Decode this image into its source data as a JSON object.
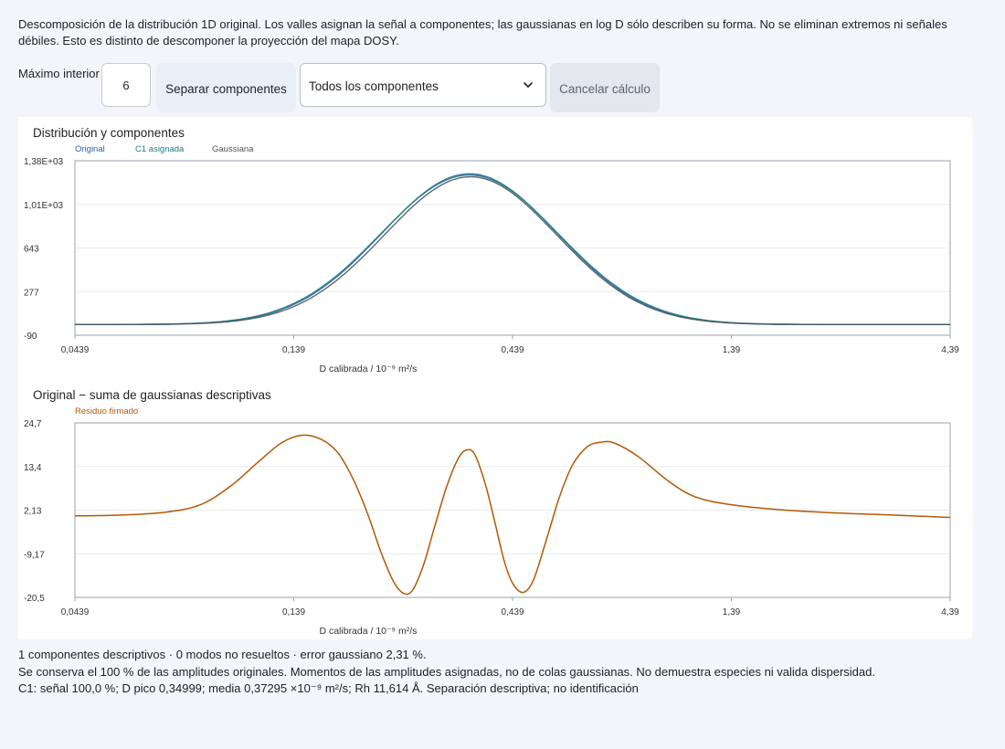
{
  "intro": {
    "line1": "Descomposición de la distribución 1D original. Los valles asignan la señal a componentes; las gaussianas en log D sólo describen su forma. No se eliminan extremos ni señales",
    "line2": "débiles. Esto es distinto de descomponer la proyección del mapa DOSY."
  },
  "controls": {
    "max_label": "Máximo interior",
    "max_value": "6",
    "split_label": "Separar componentes",
    "select_value": "Todos los componentes",
    "cancel_label": "Cancelar cálculo"
  },
  "icons": {
    "select_chevron": "chevron-down-icon"
  },
  "colors": {
    "original": "#2f5fa7",
    "assigned": "#1d8080",
    "gaussian": "#4a5560",
    "residual": "#b35806"
  },
  "chart_data": [
    {
      "type": "line",
      "title": "Distribución y componentes",
      "xlabel": "D calibrada / 10⁻⁹ m²/s",
      "x_scale": "log",
      "xlim": [
        0.0439,
        4.39
      ],
      "ylim": [
        -90,
        1380
      ],
      "x_ticks": [
        "0,0439",
        "0,139",
        "0,439",
        "1,39",
        "4,39"
      ],
      "y_ticks": [
        "1,38E+03",
        "1,01E+03",
        "643",
        "277",
        "-90"
      ],
      "legend": [
        "Original",
        "C1 asignada",
        "Gaussiana"
      ],
      "legend_position": "top-left",
      "grid": true,
      "series": [
        {
          "name": "Original",
          "peak_x": 0.35,
          "peak_y": 1270,
          "log10_sigma": 0.2,
          "baseline": 0
        },
        {
          "name": "C1 asignada",
          "peak_x": 0.35,
          "peak_y": 1260,
          "log10_sigma": 0.203,
          "baseline": 0
        },
        {
          "name": "Gaussiana",
          "peak_x": 0.352,
          "peak_y": 1245,
          "log10_sigma": 0.197,
          "baseline": 0
        }
      ]
    },
    {
      "type": "line",
      "title": "Original − suma de gaussianas descriptivas",
      "xlabel": "D calibrada / 10⁻⁹ m²/s",
      "x_scale": "log",
      "xlim": [
        0.0439,
        4.39
      ],
      "ylim": [
        -20.5,
        24.7
      ],
      "x_ticks": [
        "0,0439",
        "0,139",
        "0,439",
        "1,39",
        "4,39"
      ],
      "y_ticks": [
        "24,7",
        "13,4",
        "2,13",
        "-9,17",
        "-20,5"
      ],
      "legend": [
        "Residuo firmado"
      ],
      "legend_position": "top-left",
      "grid": true,
      "series": [
        {
          "name": "Residuo firmado",
          "points": [
            [
              0.0439,
              0.6
            ],
            [
              0.055,
              0.8
            ],
            [
              0.07,
              1.5
            ],
            [
              0.085,
              3.5
            ],
            [
              0.1,
              8.5
            ],
            [
              0.115,
              14.5
            ],
            [
              0.13,
              19.5
            ],
            [
              0.145,
              21.5
            ],
            [
              0.16,
              20.5
            ],
            [
              0.175,
              17
            ],
            [
              0.19,
              10
            ],
            [
              0.205,
              1
            ],
            [
              0.22,
              -9
            ],
            [
              0.235,
              -16.5
            ],
            [
              0.248,
              -19.5
            ],
            [
              0.26,
              -18.5
            ],
            [
              0.275,
              -12
            ],
            [
              0.29,
              -3
            ],
            [
              0.31,
              8
            ],
            [
              0.33,
              15.5
            ],
            [
              0.345,
              17.7
            ],
            [
              0.36,
              16.5
            ],
            [
              0.38,
              9
            ],
            [
              0.4,
              -1
            ],
            [
              0.42,
              -11
            ],
            [
              0.44,
              -17
            ],
            [
              0.465,
              -19.2
            ],
            [
              0.49,
              -16
            ],
            [
              0.52,
              -7
            ],
            [
              0.56,
              5
            ],
            [
              0.6,
              13.5
            ],
            [
              0.65,
              18.5
            ],
            [
              0.7,
              19.7
            ],
            [
              0.75,
              19.5
            ],
            [
              0.85,
              16
            ],
            [
              1.0,
              9.5
            ],
            [
              1.15,
              5.5
            ],
            [
              1.39,
              3.5
            ],
            [
              1.8,
              2.2
            ],
            [
              2.5,
              1.3
            ],
            [
              3.3,
              0.8
            ],
            [
              4.39,
              0.2
            ]
          ]
        }
      ]
    }
  ],
  "summary": {
    "line1": "1 componentes descriptivos · 0 modos no resueltos · error gaussiano 2,31 %.",
    "line2": "Se conserva el 100 % de las amplitudes originales. Momentos de las amplitudes asignadas, no de colas gaussianas. No demuestra especies ni valida dispersidad.",
    "line3": "C1: señal 100,0 %; D pico 0,34999; media 0,37295 ×10⁻⁹ m²/s; Rh 11,614 Å. Separación descriptiva; no identificación"
  }
}
